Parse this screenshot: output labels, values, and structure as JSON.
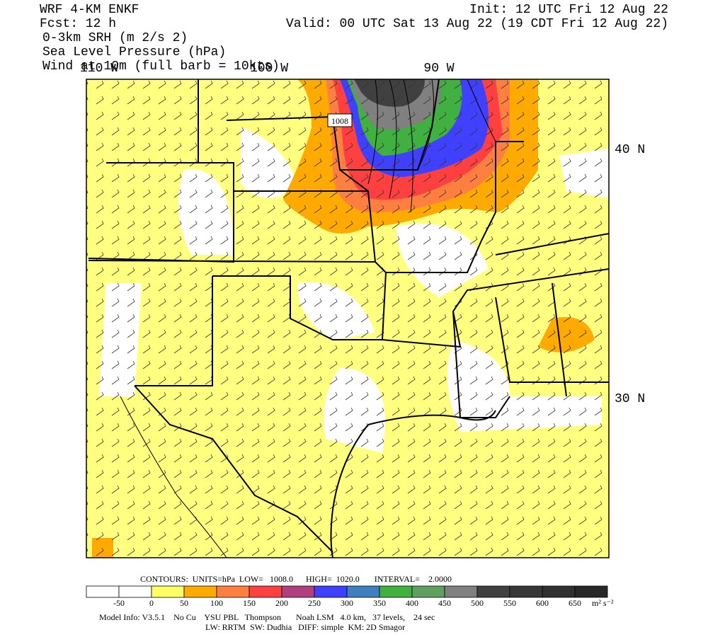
{
  "header": {
    "left": [
      "WRF 4-KM ENKF",
      "Fcst:   12 h",
      "0-3km SRH (m 2/s 2)",
      "Sea Level Pressure (hPa)",
      "Wind at 10m (full barb = 10kts)"
    ],
    "right": [
      "Init: 12 UTC Fri 12 Aug 22",
      "Valid: 00 UTC Sat 13 Aug 22 (19 CDT Fri 12 Aug 22)"
    ]
  },
  "map": {
    "lon_labels": [
      "110 W",
      "100 W",
      "90 W"
    ],
    "lat_labels": [
      "40 N",
      "30 N"
    ],
    "contour_label": "1008"
  },
  "contours": "CONTOURS:  UNITS=hPa  LOW=   1008.0      HIGH=  1020.0       INTERVAL=    2.0000",
  "colorbar": {
    "boundaries": [
      -50,
      0,
      50,
      100,
      150,
      200,
      250,
      300,
      350,
      400,
      450,
      500,
      550,
      600,
      650
    ],
    "colors": [
      "#ffffff",
      "#ffffff",
      "#ffff66",
      "#ffaa00",
      "#ff7f40",
      "#ff4040",
      "#b04080",
      "#4040ff",
      "#3f7fbf",
      "#40b040",
      "#5f9f5f",
      "#808080",
      "#404040",
      "#383838",
      "#303030",
      "#282828"
    ],
    "units": "m² s⁻²"
  },
  "model_info": [
    "Model Info: V3.5.1    No Cu    YSU PBL   Thompson       Noah LSM   4.0 km,   37 levels,    24 sec",
    "LW: RRTM  SW: Dudhia   DIFF: simple  KM: 2D Smagor"
  ]
}
